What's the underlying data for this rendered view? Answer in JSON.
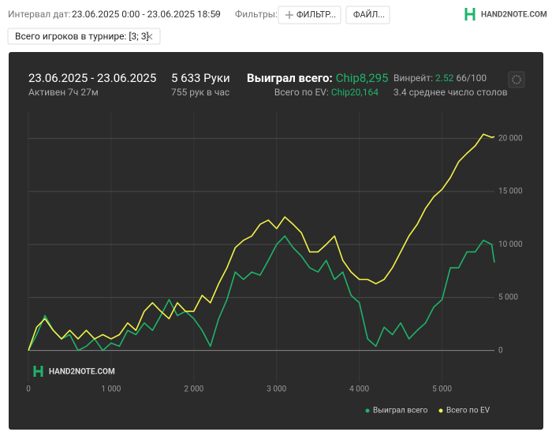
{
  "toolbar": {
    "date_label": "Интервал дат:",
    "date_value": "23.06.2025 0:00 - 23.06.2025 18:59",
    "filters_label": "Фильтры:",
    "filter_button": "ФИЛЬТР...",
    "file_button": "ФАЙЛ...",
    "logo": "HAND2NOTE.COM"
  },
  "filter_tag": "Всего игроков в турнире: [3; 3]",
  "stats": {
    "date_range": "23.06.2025 - 23.06.2025",
    "active": "Активен 7ч 27м",
    "hands": "5 633 Руки",
    "hands_per_hour": "755 рук в час",
    "won_label": "Выиграл всего:",
    "won_value": "Chip8,295",
    "ev_label": "Всего по EV:",
    "ev_value": "Chip20,164",
    "winrate_label": "Винрейт:",
    "winrate_value": "2.52",
    "winrate_unit": "66/100",
    "tables": "3.4 среднее число столов"
  },
  "chart_data": {
    "type": "line",
    "watermark": "HAND2NOTE.COM",
    "x": [
      0,
      100,
      200,
      300,
      400,
      500,
      600,
      700,
      800,
      900,
      1000,
      1100,
      1200,
      1300,
      1400,
      1500,
      1600,
      1700,
      1800,
      1900,
      2000,
      2100,
      2200,
      2300,
      2400,
      2500,
      2600,
      2700,
      2800,
      2900,
      3000,
      3100,
      3200,
      3300,
      3400,
      3500,
      3600,
      3700,
      3800,
      3900,
      4000,
      4100,
      4200,
      4300,
      4400,
      4500,
      4600,
      4700,
      4800,
      4900,
      5000,
      5100,
      5200,
      5300,
      5400,
      5500,
      5600,
      5633
    ],
    "series": [
      {
        "name": "Выиграл всего",
        "color": "#1fb36b",
        "values": [
          0,
          1500,
          3300,
          1900,
          1100,
          1500,
          0,
          400,
          1100,
          0,
          700,
          400,
          1900,
          1500,
          2600,
          1900,
          3300,
          4800,
          3300,
          3700,
          3000,
          1900,
          400,
          3000,
          4800,
          7400,
          6700,
          7400,
          7100,
          8500,
          10000,
          10800,
          9700,
          8900,
          7800,
          7400,
          8500,
          6700,
          7400,
          5200,
          4500,
          1100,
          400,
          2200,
          1500,
          2600,
          1100,
          1900,
          2600,
          4100,
          4800,
          7800,
          7800,
          9300,
          9300,
          10400,
          10000,
          8295
        ]
      },
      {
        "name": "Всего по EV",
        "color": "#f2f24a",
        "values": [
          0,
          2200,
          3000,
          1900,
          1100,
          1900,
          1100,
          1900,
          1100,
          1500,
          1100,
          1500,
          2600,
          1900,
          3700,
          4500,
          3700,
          3000,
          4500,
          3700,
          3700,
          5200,
          4500,
          6300,
          7800,
          9700,
          10400,
          10800,
          11900,
          12300,
          11500,
          12600,
          11900,
          11100,
          9300,
          9300,
          10000,
          10800,
          8500,
          7400,
          6700,
          6700,
          6300,
          6700,
          7800,
          9300,
          10800,
          11900,
          13400,
          14500,
          15200,
          16300,
          17800,
          18600,
          19300,
          20400,
          20100,
          20164
        ]
      }
    ],
    "xlim": [
      0,
      5633
    ],
    "xticks": [
      0,
      {
        "value": 1000,
        "label": "1 000"
      },
      {
        "value": 2000,
        "label": "2 000"
      },
      {
        "value": 3000,
        "label": "3 000"
      },
      {
        "value": 4000,
        "label": "4 000"
      },
      {
        "value": 5000,
        "label": "5 000"
      }
    ],
    "ylim": [
      -3000,
      22500
    ],
    "yticks": [
      0,
      {
        "value": 5000,
        "label": "5 000"
      },
      {
        "value": 10000,
        "label": "10 000"
      },
      {
        "value": 15000,
        "label": "15 000"
      },
      {
        "value": 20000,
        "label": "20 000"
      }
    ],
    "grid": true
  }
}
